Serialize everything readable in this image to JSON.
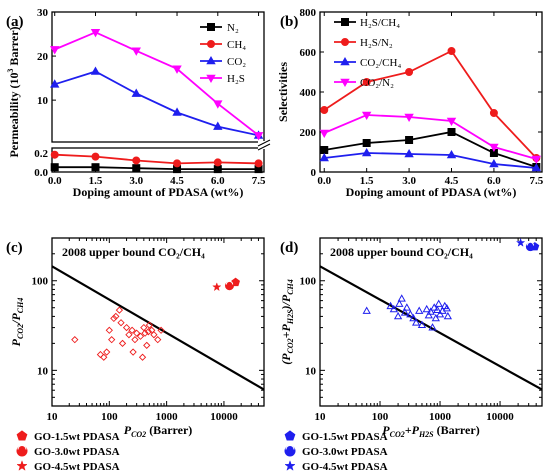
{
  "panels": {
    "a": {
      "letter": "(a)",
      "xlabel": "Doping amount of PDASA (wt%)",
      "ylabel": "Permeability (10",
      "ylabel_sup": "3",
      "ylabel_end": " Barrer)",
      "legend": [
        "N₂",
        "CH₄",
        "CO₂",
        "H₂S"
      ]
    },
    "b": {
      "letter": "(b)",
      "xlabel": "Doping amount of PDASA (wt%)",
      "ylabel": "Selectivities",
      "legend": [
        "H₂S/CH₄",
        "H₂S/N₂",
        "CO₂/CH₄",
        "CO₂/N₂"
      ]
    },
    "c": {
      "letter": "(c)",
      "bound": "2008 upper bound CO₂/CH₄",
      "xlabel": "P",
      "xlabel_sub": "CO2",
      "xlabel_end": " (Barrer)",
      "ylabel": "P",
      "ylabel_sub": "CO2",
      "ylabel_mid": "/P",
      "ylabel_sub2": "CH4",
      "legend": [
        "GO-1.5wt PDASA",
        "GO-3.0wt PDASA",
        "GO-4.5wt PDASA"
      ]
    },
    "d": {
      "letter": "(d)",
      "bound": "2008 upper bound CO₂/CH₄",
      "xlabel": "P",
      "xlabel_sub": "CO2",
      "xlabel_mid": "+P",
      "xlabel_sub2": "H2S",
      "xlabel_end": " (Barrer)",
      "ylabel": "(P",
      "ylabel_sub": "CO2",
      "ylabel_mid": "+P",
      "ylabel_sub2": "H2S",
      "ylabel_mid2": ")/P",
      "ylabel_sub3": "CH4",
      "legend": [
        "GO-1.5wt PDASA",
        "GO-3.0wt PDASA",
        "GO-4.5wt PDASA"
      ]
    }
  },
  "colors": {
    "black": "#000000",
    "red": "#ee1c1c",
    "blue": "#1f1fee",
    "magenta": "#ff00ff"
  },
  "chart_data": [
    {
      "id": "a",
      "type": "line",
      "x": [
        0,
        1.5,
        3.0,
        4.5,
        6.0,
        7.5
      ],
      "xticks": [
        "0.0",
        "1.5",
        "3.0",
        "4.5",
        "6.0",
        "7.5"
      ],
      "xlim": [
        -0.1,
        7.7
      ],
      "broken_axis": true,
      "ylim_lower": [
        0,
        0.25
      ],
      "yticks_lower": [
        "0.0",
        "0.2"
      ],
      "ylim_upper": [
        0.5,
        30
      ],
      "yticks_upper": [
        "10",
        "20",
        "30"
      ],
      "series": [
        {
          "name": "N₂",
          "color": "#000000",
          "marker": "square",
          "values": [
            0.05,
            0.05,
            0.04,
            0.03,
            0.03,
            0.03
          ]
        },
        {
          "name": "CH₄",
          "color": "#ee1c1c",
          "marker": "circle",
          "values": [
            0.18,
            0.16,
            0.12,
            0.09,
            0.1,
            0.09
          ]
        },
        {
          "name": "CO₂",
          "color": "#1f1fee",
          "marker": "triangle-up",
          "values": [
            13.6,
            16.5,
            11.5,
            7.2,
            4.0,
            2.0
          ]
        },
        {
          "name": "H₂S",
          "color": "#ff00ff",
          "marker": "triangle-down",
          "values": [
            21.5,
            25.4,
            21.2,
            17.1,
            9.2,
            2.0
          ]
        }
      ]
    },
    {
      "id": "b",
      "type": "line",
      "x": [
        0,
        1.5,
        3.0,
        4.5,
        6.0,
        7.5
      ],
      "xticks": [
        "0.0",
        "1.5",
        "3.0",
        "4.5",
        "6.0",
        "7.5"
      ],
      "xlim": [
        -0.15,
        7.7
      ],
      "ylim": [
        0,
        800
      ],
      "yticks": [
        "0",
        "200",
        "400",
        "600",
        "800"
      ],
      "series": [
        {
          "name": "H₂S/CH₄",
          "color": "#000000",
          "marker": "square",
          "values": [
            110,
            145,
            160,
            200,
            95,
            25
          ]
        },
        {
          "name": "H₂S/N₂",
          "color": "#ee1c1c",
          "marker": "circle",
          "values": [
            310,
            450,
            500,
            605,
            295,
            70
          ]
        },
        {
          "name": "CO₂/CH₄",
          "color": "#1f1fee",
          "marker": "triangle-up",
          "values": [
            70,
            95,
            90,
            85,
            40,
            20
          ]
        },
        {
          "name": "CO₂/N₂",
          "color": "#ff00ff",
          "marker": "triangle-down",
          "values": [
            195,
            285,
            275,
            255,
            125,
            65
          ]
        }
      ]
    },
    {
      "id": "c",
      "type": "scatter",
      "xscale": "log",
      "yscale": "log",
      "xlim": [
        10,
        50000
      ],
      "ylim": [
        4,
        300
      ],
      "xticks": [
        "10",
        "100",
        "1000",
        "10000"
      ],
      "yticks": [
        "10",
        "100"
      ],
      "upper_bound": [
        [
          10,
          145
        ],
        [
          50000,
          6.1
        ]
      ],
      "literature": [
        [
          25,
          22
        ],
        [
          70,
          15
        ],
        [
          80,
          14
        ],
        [
          90,
          16
        ],
        [
          100,
          28
        ],
        [
          110,
          22
        ],
        [
          120,
          38
        ],
        [
          130,
          40
        ],
        [
          150,
          47
        ],
        [
          160,
          34
        ],
        [
          170,
          20
        ],
        [
          200,
          30
        ],
        [
          220,
          25
        ],
        [
          250,
          28
        ],
        [
          260,
          16
        ],
        [
          280,
          22
        ],
        [
          300,
          26
        ],
        [
          350,
          24
        ],
        [
          380,
          14
        ],
        [
          400,
          30
        ],
        [
          420,
          26
        ],
        [
          450,
          19
        ],
        [
          480,
          27
        ],
        [
          500,
          32
        ],
        [
          550,
          28
        ],
        [
          600,
          25
        ],
        [
          700,
          22
        ],
        [
          800,
          28
        ]
      ],
      "series": [
        {
          "name": "GO-1.5wt PDASA",
          "color": "#ee1c1c",
          "marker": "pentagon",
          "points": [
            [
              16000,
              96
            ]
          ]
        },
        {
          "name": "GO-3.0wt PDASA",
          "color": "#ee1c1c",
          "marker": "half-circle",
          "points": [
            [
              12500,
              88
            ]
          ]
        },
        {
          "name": "GO-4.5wt PDASA",
          "color": "#ee1c1c",
          "marker": "star",
          "points": [
            [
              7500,
              85
            ]
          ]
        }
      ]
    },
    {
      "id": "d",
      "type": "scatter",
      "xscale": "log",
      "yscale": "log",
      "xlim": [
        10,
        50000
      ],
      "ylim": [
        4,
        300
      ],
      "xticks": [
        "10",
        "100",
        "1000",
        "10000"
      ],
      "yticks": [
        "10",
        "100"
      ],
      "upper_bound": [
        [
          10,
          145
        ],
        [
          50000,
          6.1
        ]
      ],
      "literature": [
        [
          60,
          46
        ],
        [
          150,
          52
        ],
        [
          170,
          48
        ],
        [
          200,
          40
        ],
        [
          210,
          55
        ],
        [
          230,
          63
        ],
        [
          260,
          44
        ],
        [
          280,
          50
        ],
        [
          320,
          42
        ],
        [
          360,
          38
        ],
        [
          400,
          34
        ],
        [
          450,
          46
        ],
        [
          500,
          32
        ],
        [
          600,
          48
        ],
        [
          650,
          41
        ],
        [
          700,
          45
        ],
        [
          750,
          30
        ],
        [
          800,
          50
        ],
        [
          850,
          38
        ],
        [
          900,
          47
        ],
        [
          950,
          55
        ],
        [
          1000,
          42
        ],
        [
          1100,
          46
        ],
        [
          1200,
          52
        ],
        [
          1300,
          49
        ],
        [
          1350,
          40
        ]
      ],
      "series": [
        {
          "name": "GO-1.5wt PDASA",
          "color": "#1f1fee",
          "marker": "pentagon",
          "points": [
            [
              38000,
              240
            ]
          ]
        },
        {
          "name": "GO-3.0wt PDASA",
          "color": "#1f1fee",
          "marker": "half-circle",
          "points": [
            [
              32000,
              240
            ]
          ]
        },
        {
          "name": "GO-4.5wt PDASA",
          "color": "#1f1fee",
          "marker": "star",
          "points": [
            [
              22000,
              265
            ]
          ]
        }
      ]
    }
  ]
}
